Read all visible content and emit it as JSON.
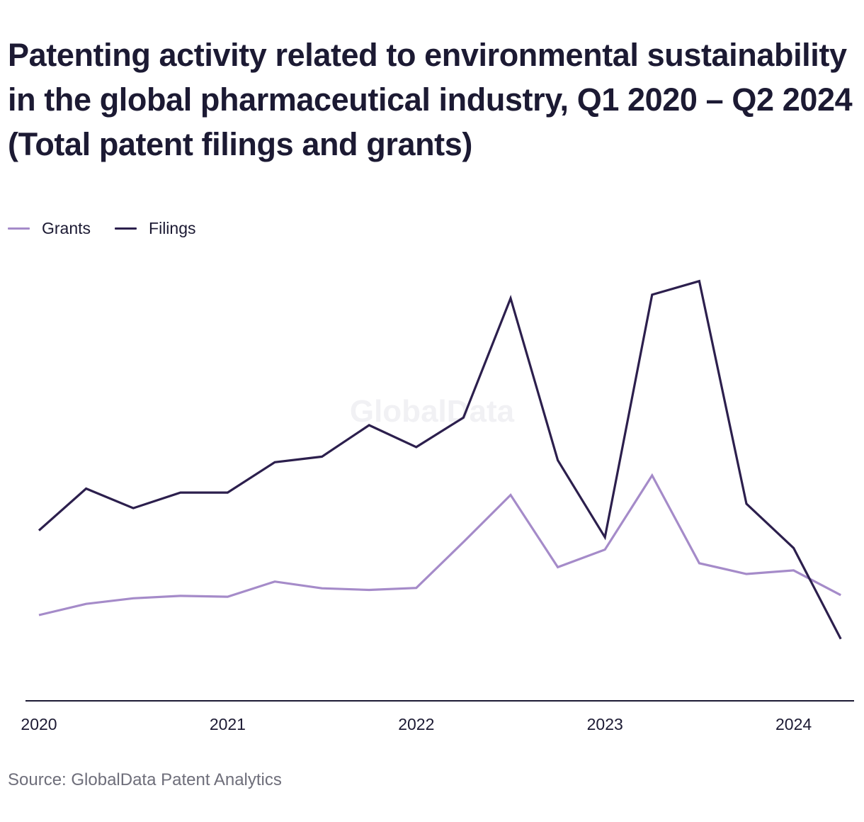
{
  "header": {
    "title": "Patenting activity related to environmental sustainability in the global pharmaceutical industry, Q1 2020 – Q2 2024 (Total patent filings and grants)"
  },
  "legend": {
    "items": [
      {
        "label": "Grants",
        "color": "#a58bc9"
      },
      {
        "label": "Filings",
        "color": "#2c1f4d"
      }
    ]
  },
  "watermark": "GlobalData",
  "source": "Source: GlobalData Patent Analytics",
  "chart_data": {
    "type": "line",
    "title": "Patenting activity related to environmental sustainability in the global pharmaceutical industry, Q1 2020 – Q2 2024 (Total patent filings and grants)",
    "xlabel": "",
    "ylabel": "",
    "x": [
      "Q1 2020",
      "Q2 2020",
      "Q3 2020",
      "Q4 2020",
      "Q1 2021",
      "Q2 2021",
      "Q3 2021",
      "Q4 2021",
      "Q1 2022",
      "Q2 2022",
      "Q3 2022",
      "Q4 2022",
      "Q1 2023",
      "Q2 2023",
      "Q3 2023",
      "Q4 2023",
      "Q1 2024",
      "Q2 2024"
    ],
    "xticks": [
      "2020",
      "2021",
      "2022",
      "2023",
      "2024"
    ],
    "ylim": [
      0,
      100
    ],
    "grid": false,
    "legend_position": "top-left",
    "series": [
      {
        "name": "Grants",
        "color": "#a58bc9",
        "values": [
          21.5,
          24.3,
          25.7,
          26.3,
          26.1,
          29.9,
          28.2,
          27.8,
          28.3,
          39.8,
          51.6,
          33.5,
          37.9,
          56.5,
          34.5,
          31.8,
          32.7,
          26.5
        ]
      },
      {
        "name": "Filings",
        "color": "#2c1f4d",
        "values": [
          42.7,
          53.2,
          48.3,
          52.2,
          52.2,
          59.8,
          61.2,
          69.1,
          63.6,
          71.0,
          100.9,
          60.3,
          41.0,
          101.8,
          105.2,
          49.4,
          38.3,
          15.5
        ]
      }
    ]
  }
}
